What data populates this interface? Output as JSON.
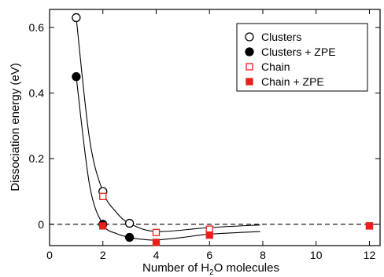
{
  "chart_data": {
    "type": "scatter",
    "xlabel": {
      "before": "Number of H",
      "sub": "2",
      "after": "O molecules"
    },
    "ylabel": "Dissociation energy (eV)",
    "xlim": [
      0,
      12.4
    ],
    "ylim": [
      -0.065,
      0.655
    ],
    "x_axis": {
      "scale": "broken",
      "ticks": [
        0,
        2,
        4,
        6,
        8,
        10,
        12
      ],
      "break_between": [
        10,
        12
      ]
    },
    "y_axis": {
      "ticks": [
        0,
        0.2,
        0.4,
        0.6
      ],
      "tick_labels": [
        "0",
        "0.2",
        "0.4",
        "0.6"
      ]
    },
    "reference_line": {
      "y": 0,
      "style": "dashed",
      "color": "#000000"
    },
    "legend_position": "top-right",
    "series": [
      {
        "name": "Clusters",
        "marker": "circle-open",
        "color": "#000000",
        "x": [
          1,
          2,
          3
        ],
        "y": [
          0.63,
          0.1,
          0.003
        ]
      },
      {
        "name": "Clusters + ZPE",
        "marker": "circle-filled",
        "color": "#000000",
        "x": [
          1,
          2,
          3
        ],
        "y": [
          0.45,
          0.0,
          -0.04
        ]
      },
      {
        "name": "Chain",
        "marker": "square-open",
        "color": "#e8201c",
        "x": [
          2,
          4,
          6,
          12
        ],
        "y": [
          0.085,
          -0.025,
          -0.015,
          -0.005
        ]
      },
      {
        "name": "Chain + ZPE",
        "marker": "square-filled",
        "color": "#e8201c",
        "x": [
          2,
          4,
          6,
          12
        ],
        "y": [
          -0.005,
          -0.055,
          -0.033,
          -0.005
        ]
      }
    ],
    "fit_curves": [
      {
        "color": "#000000",
        "x": [
          1,
          1.5,
          2,
          2.5,
          3,
          4,
          6,
          7.9
        ],
        "y": [
          0.63,
          0.26,
          0.1,
          0.037,
          0.003,
          -0.022,
          -0.01,
          -0.002
        ]
      },
      {
        "color": "#000000",
        "x": [
          1,
          1.5,
          2,
          2.5,
          3,
          3.5,
          4,
          5,
          6,
          7.9
        ],
        "y": [
          0.45,
          0.12,
          0.0,
          -0.028,
          -0.04,
          -0.046,
          -0.048,
          -0.04,
          -0.03,
          -0.022
        ]
      }
    ]
  }
}
